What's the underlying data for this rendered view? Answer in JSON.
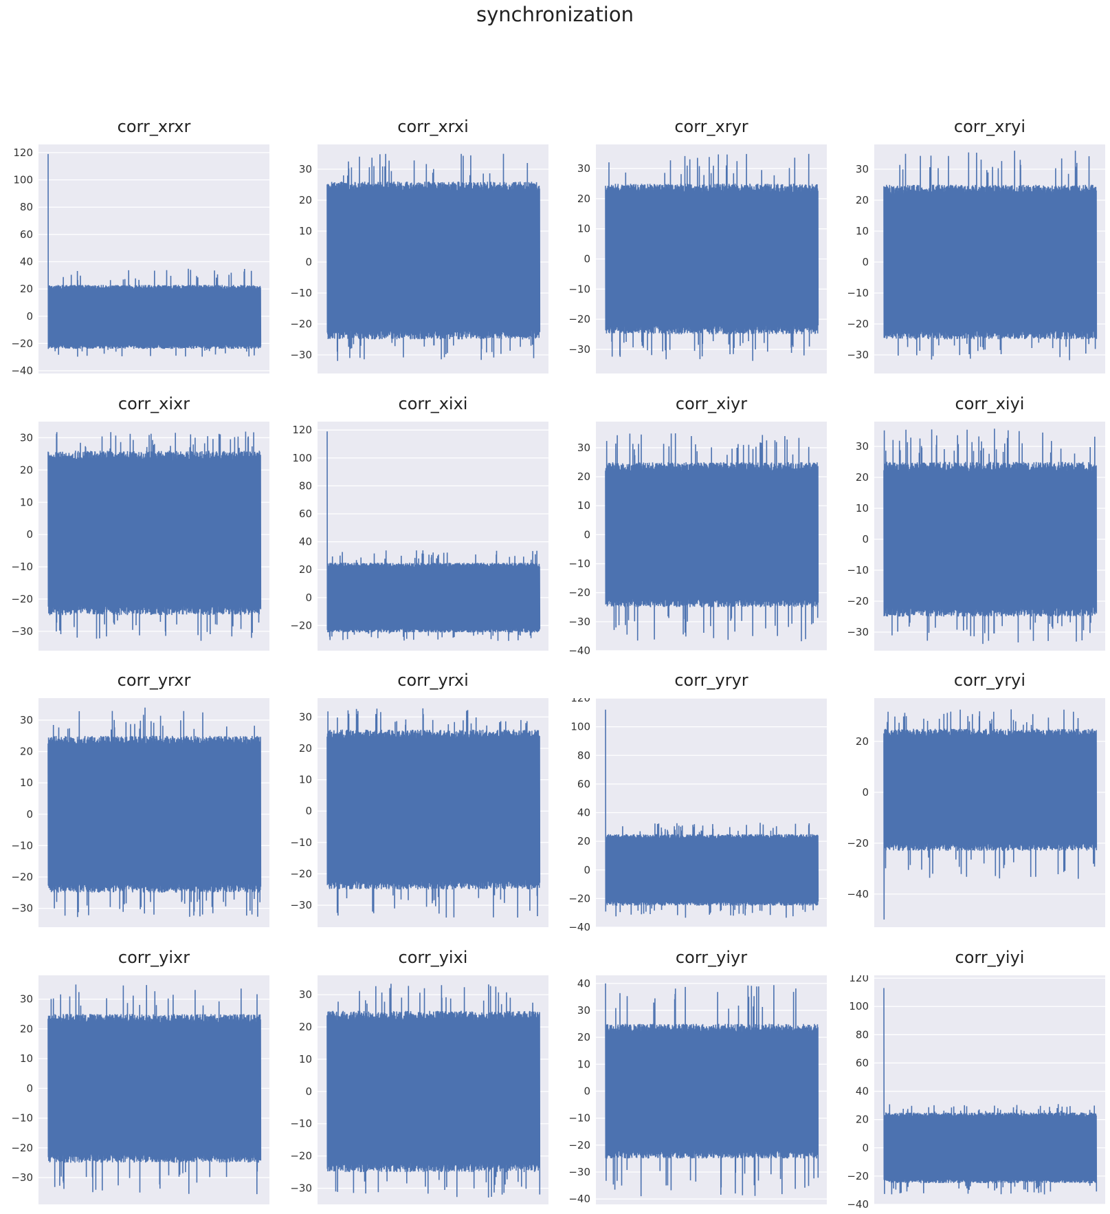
{
  "suptitle": "synchronization",
  "colors": {
    "plot_bg": "#EAEAF2",
    "grid": "#FFFFFF",
    "line": "#4C72B0"
  },
  "chart_data": [
    {
      "title": "corr_xrxr",
      "type": "line",
      "ylim": [
        -42,
        126
      ],
      "yticks": [
        -40,
        -20,
        0,
        20,
        40,
        60,
        80,
        100,
        120
      ],
      "band": [
        -21,
        20
      ],
      "noise_range": [
        -30,
        35
      ],
      "spike": {
        "at": "start",
        "value": 119
      }
    },
    {
      "title": "corr_xrxi",
      "type": "line",
      "ylim": [
        -36,
        38
      ],
      "yticks": [
        -30,
        -20,
        -10,
        0,
        10,
        20,
        30
      ],
      "band": [
        -22,
        23
      ],
      "noise_range": [
        -32,
        35
      ]
    },
    {
      "title": "corr_xryr",
      "type": "line",
      "ylim": [
        -38,
        38
      ],
      "yticks": [
        -30,
        -20,
        -10,
        0,
        10,
        20,
        30
      ],
      "band": [
        -22,
        22
      ],
      "noise_range": [
        -34,
        35
      ]
    },
    {
      "title": "corr_xryi",
      "type": "line",
      "ylim": [
        -36,
        38
      ],
      "yticks": [
        -30,
        -20,
        -10,
        0,
        10,
        20,
        30
      ],
      "band": [
        -22,
        22
      ],
      "noise_range": [
        -32,
        36
      ]
    },
    {
      "title": "corr_xixr",
      "type": "line",
      "ylim": [
        -36,
        35
      ],
      "yticks": [
        -30,
        -20,
        -10,
        0,
        10,
        20,
        30
      ],
      "band": [
        -22,
        23
      ],
      "noise_range": [
        -33,
        32
      ]
    },
    {
      "title": "corr_xixi",
      "type": "line",
      "ylim": [
        -38,
        126
      ],
      "yticks": [
        -20,
        0,
        20,
        40,
        60,
        80,
        100,
        120
      ],
      "band": [
        -22,
        22
      ],
      "noise_range": [
        -31,
        34
      ],
      "spike": {
        "at": "start",
        "value": 119
      }
    },
    {
      "title": "corr_xiyr",
      "type": "line",
      "ylim": [
        -40,
        39
      ],
      "yticks": [
        -40,
        -30,
        -20,
        -10,
        0,
        10,
        20,
        30
      ],
      "band": [
        -22,
        22
      ],
      "noise_range": [
        -37,
        35
      ]
    },
    {
      "title": "corr_xiyi",
      "type": "line",
      "ylim": [
        -36,
        38
      ],
      "yticks": [
        -30,
        -20,
        -10,
        0,
        10,
        20,
        30
      ],
      "band": [
        -22,
        22
      ],
      "noise_range": [
        -34,
        36
      ]
    },
    {
      "title": "corr_yrxr",
      "type": "line",
      "ylim": [
        -36,
        37
      ],
      "yticks": [
        -30,
        -20,
        -10,
        0,
        10,
        20,
        30
      ],
      "band": [
        -22,
        22
      ],
      "noise_range": [
        -33,
        34
      ]
    },
    {
      "title": "corr_yrxi",
      "type": "line",
      "ylim": [
        -37,
        36
      ],
      "yticks": [
        -30,
        -20,
        -10,
        0,
        10,
        20,
        30
      ],
      "band": [
        -22,
        23
      ],
      "noise_range": [
        -34,
        33
      ]
    },
    {
      "title": "corr_yryr",
      "type": "line",
      "ylim": [
        -40,
        120
      ],
      "yticks": [
        -40,
        -20,
        0,
        20,
        40,
        60,
        80,
        100,
        120
      ],
      "band": [
        -22,
        22
      ],
      "noise_range": [
        -34,
        33
      ],
      "spike": {
        "at": "start",
        "value": 112
      }
    },
    {
      "title": "corr_yryi",
      "type": "line",
      "ylim": [
        -53,
        37
      ],
      "yticks": [
        -40,
        -20,
        0,
        20
      ],
      "band": [
        -20,
        22
      ],
      "noise_range": [
        -34,
        33
      ],
      "spike": {
        "at": "start",
        "value": -50
      }
    },
    {
      "title": "corr_yixr",
      "type": "line",
      "ylim": [
        -39,
        38
      ],
      "yticks": [
        -30,
        -20,
        -10,
        0,
        10,
        20,
        30
      ],
      "band": [
        -22,
        22
      ],
      "noise_range": [
        -36,
        35
      ]
    },
    {
      "title": "corr_yixi",
      "type": "line",
      "ylim": [
        -35,
        36
      ],
      "yticks": [
        -30,
        -20,
        -10,
        0,
        10,
        20,
        30
      ],
      "band": [
        -22,
        22
      ],
      "noise_range": [
        -33,
        34
      ]
    },
    {
      "title": "corr_yiyr",
      "type": "line",
      "ylim": [
        -42,
        43
      ],
      "yticks": [
        -40,
        -30,
        -20,
        -10,
        0,
        10,
        20,
        30,
        40
      ],
      "band": [
        -22,
        22
      ],
      "noise_range": [
        -39,
        40
      ],
      "spike": {
        "at": "start",
        "value": 40
      }
    },
    {
      "title": "corr_yiyi",
      "type": "line",
      "ylim": [
        -40,
        122
      ],
      "yticks": [
        -40,
        -20,
        0,
        20,
        40,
        60,
        80,
        100,
        120
      ],
      "band": [
        -22,
        22
      ],
      "noise_range": [
        -33,
        31
      ],
      "spike": {
        "at": "start",
        "value": 113
      }
    }
  ]
}
